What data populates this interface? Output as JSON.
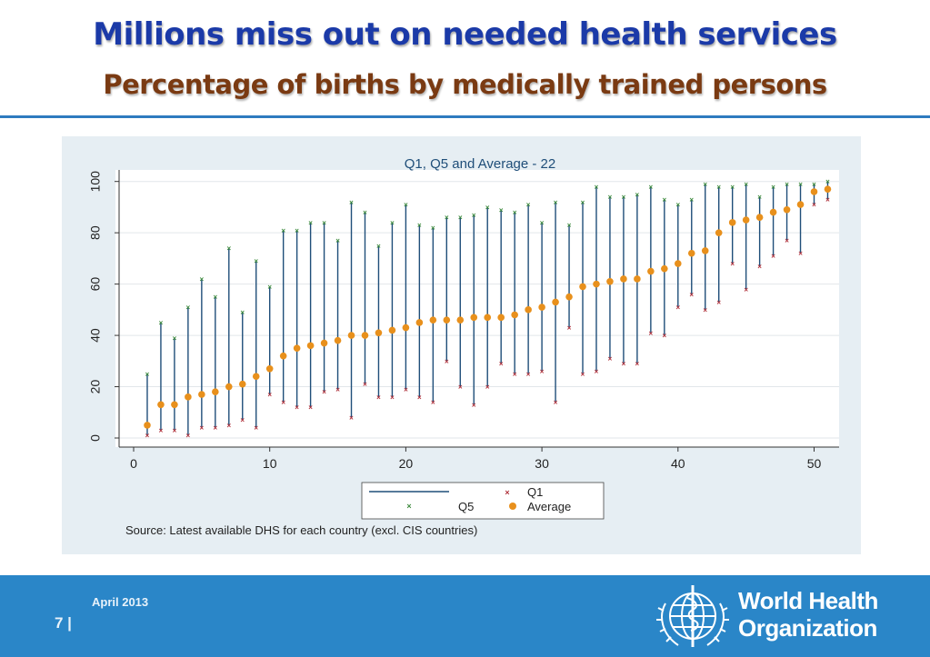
{
  "slide": {
    "title": "Millions miss out on needed health services",
    "subtitle": "Percentage of births by medically trained persons",
    "date": "April 2013",
    "page_number": "7 |",
    "org_line1": "World Health",
    "org_line2": "Organization"
  },
  "colors": {
    "title": "#1b3aa8",
    "subtitle": "#7a3a12",
    "footer": "#2a86c8",
    "range_line": "#1f4e79",
    "q1_marker": "#b0303a",
    "q5_marker": "#3c8a3c",
    "average_marker": "#e8901c"
  },
  "chart_data": {
    "type": "scatter",
    "title": "Q1, Q5 and Average - 22",
    "note": "Source: Latest available DHS for each country (excl. CIS countries)",
    "xlim": [
      0,
      52
    ],
    "ylim": [
      0,
      100
    ],
    "xticks": [
      0,
      10,
      20,
      30,
      40,
      50
    ],
    "yticks": [
      0,
      20,
      40,
      60,
      80,
      100
    ],
    "grid": "horizontal",
    "legend": {
      "placement": "bottom",
      "entries": [
        "",
        "Q1",
        "Q5",
        "Average"
      ]
    },
    "x": [
      1,
      2,
      3,
      4,
      5,
      6,
      7,
      8,
      9,
      10,
      11,
      12,
      13,
      14,
      15,
      16,
      17,
      18,
      19,
      20,
      21,
      22,
      23,
      24,
      25,
      26,
      27,
      28,
      29,
      30,
      31,
      32,
      33,
      34,
      35,
      36,
      37,
      38,
      39,
      40,
      41,
      42,
      43,
      44,
      45,
      46,
      47,
      48,
      49,
      50,
      51
    ],
    "series": [
      {
        "name": "Q1",
        "values": [
          1,
          3,
          3,
          1,
          4,
          4,
          5,
          7,
          4,
          17,
          14,
          12,
          12,
          18,
          19,
          8,
          21,
          16,
          16,
          19,
          16,
          14,
          30,
          20,
          13,
          20,
          29,
          25,
          25,
          26,
          14,
          43,
          25,
          26,
          31,
          29,
          29,
          41,
          40,
          51,
          56,
          50,
          53,
          68,
          58,
          67,
          71,
          77,
          72,
          91,
          93
        ]
      },
      {
        "name": "Q5",
        "values": [
          25,
          45,
          39,
          51,
          62,
          55,
          74,
          49,
          69,
          59,
          81,
          81,
          84,
          84,
          77,
          92,
          88,
          75,
          84,
          91,
          83,
          82,
          86,
          86,
          87,
          90,
          89,
          88,
          91,
          84,
          92,
          83,
          92,
          98,
          94,
          94,
          95,
          98,
          93,
          91,
          93,
          99,
          98,
          98,
          99,
          94,
          98,
          99,
          99,
          99,
          100
        ]
      },
      {
        "name": "Average",
        "values": [
          5,
          13,
          13,
          16,
          17,
          18,
          20,
          21,
          24,
          27,
          32,
          35,
          36,
          37,
          38,
          40,
          40,
          41,
          42,
          43,
          45,
          46,
          46,
          46,
          47,
          47,
          47,
          48,
          50,
          51,
          53,
          55,
          59,
          60,
          61,
          62,
          62,
          65,
          66,
          68,
          72,
          73,
          80,
          84,
          85,
          86,
          88,
          89,
          91,
          96,
          97
        ]
      }
    ]
  }
}
